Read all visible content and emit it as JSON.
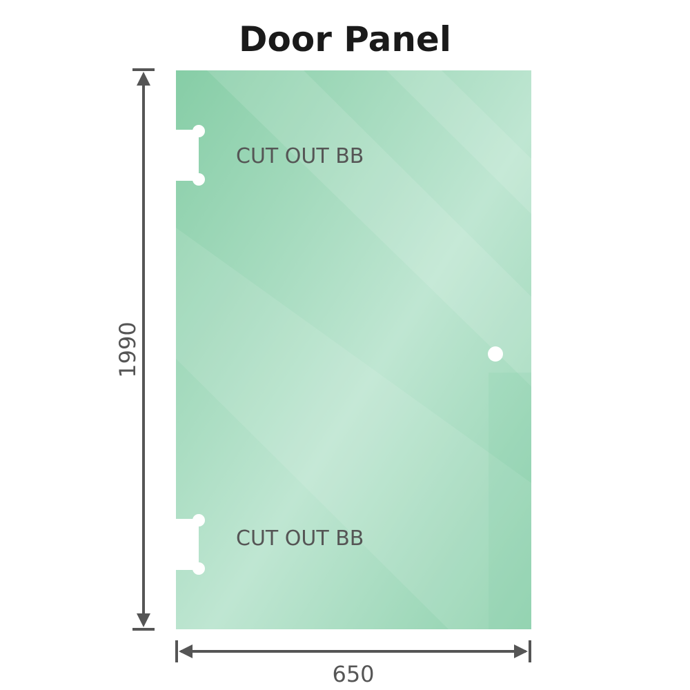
{
  "title": "Door Panel",
  "panel": {
    "cutout_labels": [
      "CUT OUT BB",
      "CUT OUT BB"
    ],
    "color": "#8fd0ae"
  },
  "dimensions": {
    "height": "1990",
    "width": "650",
    "line_color": "#555555"
  }
}
